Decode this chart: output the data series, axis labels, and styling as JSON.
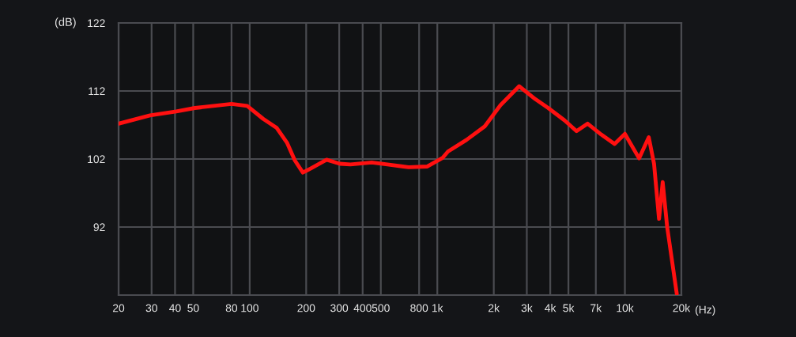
{
  "chart_data": {
    "type": "line",
    "xlabel": "(Hz)",
    "ylabel": "(dB)",
    "log": "x",
    "grid": true,
    "line_style": "solid",
    "xlim": [
      20,
      20000
    ],
    "ylim": [
      82,
      122
    ],
    "xticks": [
      20,
      30,
      40,
      50,
      80,
      100,
      200,
      300,
      400,
      500,
      800,
      {
        "value": 1000,
        "label": "1k"
      },
      {
        "value": 2000,
        "label": "2k"
      },
      {
        "value": 3000,
        "label": "3k"
      },
      {
        "value": 4000,
        "label": "4k"
      },
      {
        "value": 5000,
        "label": "5k"
      },
      {
        "value": 7000,
        "label": "7k"
      },
      {
        "value": 10000,
        "label": "10k"
      },
      {
        "value": 20000,
        "label": "20k"
      }
    ],
    "yticks": [
      92,
      102,
      112,
      122
    ],
    "x": [
      20,
      29.4,
      40.6,
      51,
      80,
      97,
      118,
      139,
      158,
      174,
      192,
      211,
      257,
      302,
      344,
      447,
      542,
      703,
      885,
      1070,
      1140,
      1430,
      1790,
      2170,
      2730,
      3330,
      3900,
      4760,
      5520,
      6330,
      7480,
      8810,
      10000,
      11900,
      13400,
      14300,
      15200,
      15900,
      16800,
      18900
    ],
    "series": [
      {
        "color": "#ff1010",
        "values": [
          107.2,
          108.4,
          109.0,
          109.5,
          110.1,
          109.8,
          107.9,
          106.6,
          104.4,
          101.8,
          100.0,
          100.6,
          101.9,
          101.3,
          101.2,
          101.5,
          101.2,
          100.8,
          100.9,
          102.2,
          103.1,
          104.8,
          106.8,
          109.9,
          112.7,
          110.8,
          109.5,
          107.7,
          106.1,
          107.2,
          105.6,
          104.2,
          105.7,
          102.1,
          105.2,
          101.3,
          93.2,
          98.6,
          92.0,
          82.2
        ]
      }
    ]
  }
}
